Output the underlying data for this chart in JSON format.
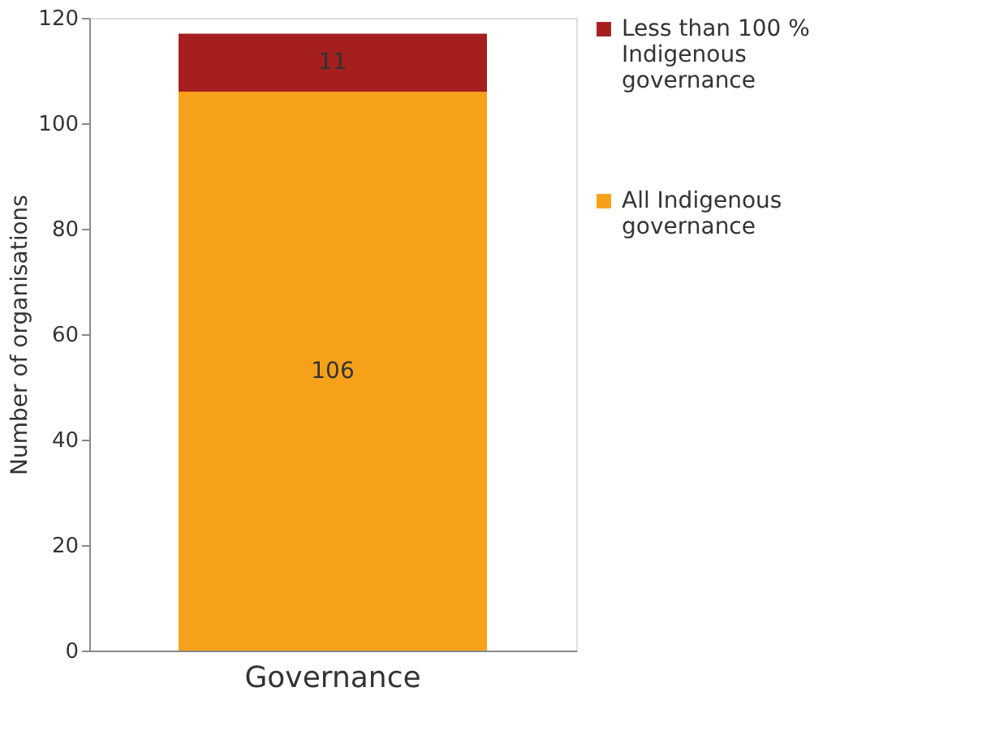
{
  "chart_data": {
    "type": "bar",
    "stacked": true,
    "categories": [
      "Governance"
    ],
    "ylabel": "Number of organisations",
    "ylim": [
      0,
      120
    ],
    "yticks": [
      0,
      20,
      40,
      60,
      80,
      100,
      120
    ],
    "grid": false,
    "legend": "right",
    "data_labels": true,
    "series": [
      {
        "name": "All Indigenous governance",
        "color": "#f7a11a",
        "values": [
          106
        ]
      },
      {
        "name": "Less than 100 % Indigenous governance",
        "color": "#a51f1f",
        "values": [
          11
        ]
      }
    ]
  }
}
